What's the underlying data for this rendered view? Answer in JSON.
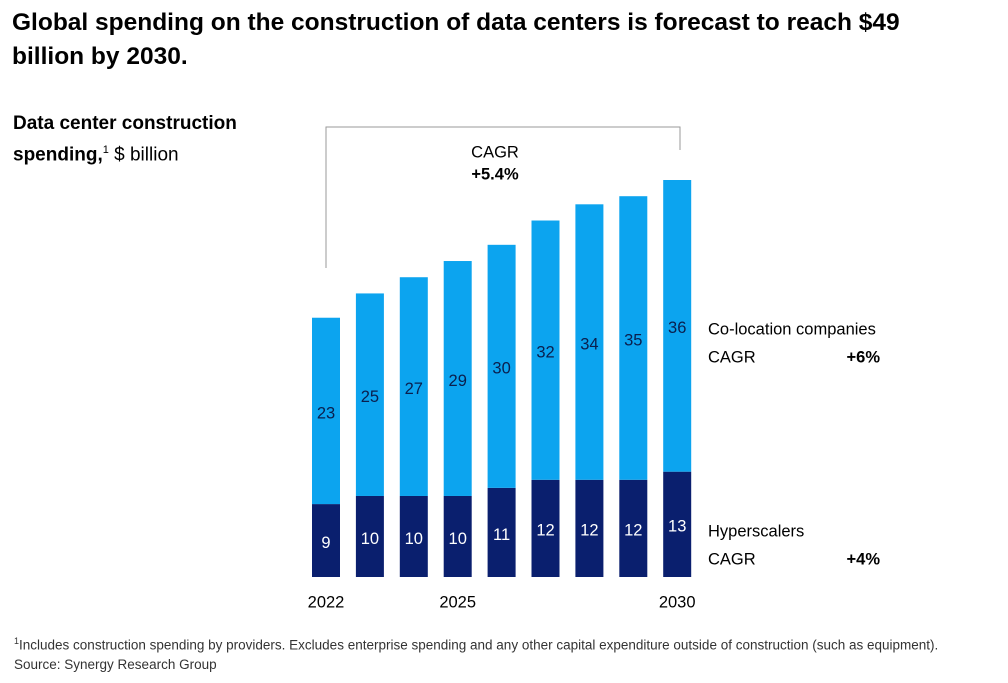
{
  "chart_data": {
    "type": "stacked_bar",
    "title": "Global spending on the construction of data centers is forecast to reach $49 billion by 2030.",
    "subtitle": "Data center construction spending,",
    "subtitle_note": "1",
    "unit": "$ billion",
    "categories": [
      "2022",
      null,
      null,
      "2025",
      null,
      null,
      null,
      null,
      "2030"
    ],
    "series": [
      {
        "name": "Hyperscalers",
        "color": "#0a1f6e",
        "label_color": "#ffffff",
        "values": [
          9,
          10,
          10,
          10,
          11,
          12,
          12,
          12,
          13
        ],
        "cagr_label": "CAGR",
        "cagr": "+4%"
      },
      {
        "name": "Co-location companies",
        "color": "#0ca4ef",
        "label_color": "#0a1f4e",
        "values": [
          23,
          25,
          27,
          29,
          30,
          32,
          34,
          35,
          36
        ],
        "cagr_label": "CAGR",
        "cagr": "+6%"
      }
    ],
    "annotation": {
      "label": "CAGR",
      "value": "+5.4%"
    },
    "footnote": {
      "marker": "1",
      "text": "Includes construction spending by providers. Excludes enterprise spending and any other capital expenditure outside of construction (such as equipment)."
    },
    "source": "Source: Synergy Research Group"
  }
}
